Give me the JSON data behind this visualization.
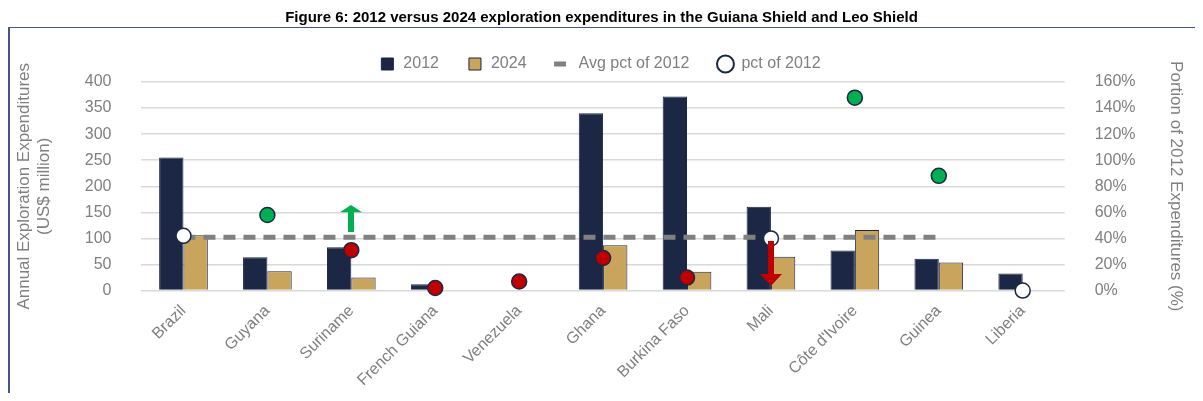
{
  "chart_data": {
    "type": "bar",
    "title": "Figure 6: 2012 versus 2024 exploration expenditures in the Guiana Shield and Leo Shield",
    "categories": [
      "Brazil",
      "Guyana",
      "Suriname",
      "French Guiana",
      "Venezuela",
      "Ghana",
      "Burkina Faso",
      "Mali",
      "Côte d'Ivoire",
      "Guinea",
      "Liberia"
    ],
    "series": [
      {
        "name": "2012",
        "color": "#1b2745",
        "values": [
          255,
          64,
          83,
          12,
          null,
          340,
          372,
          161,
          77,
          61,
          33
        ]
      },
      {
        "name": "2024",
        "color": "#c9a45c",
        "values": [
          106,
          37,
          25,
          null,
          null,
          87,
          36,
          65,
          116,
          54,
          null
        ]
      },
      {
        "name": "Avg pct of 2012",
        "type": "line",
        "axis": "y2",
        "color": "#808080",
        "line_style": "dashed",
        "marker": "none",
        "values": [
          41,
          41,
          41,
          41,
          41,
          41,
          41,
          41,
          41,
          41,
          null
        ]
      },
      {
        "name": "pct of 2012",
        "type": "scatter",
        "axis": "y2",
        "marker": "circle",
        "x": [
          "Brazil",
          "Guyana",
          "Suriname",
          "French Guiana",
          "Venezuela",
          "Ghana",
          "Burkina Faso",
          "Mali",
          "Côte d'Ivoire",
          "Guinea",
          "Liberia"
        ],
        "colors": [
          "#ffffff",
          "#00b050",
          "#c00000",
          "#c00000",
          "#c00000",
          "#c00000",
          "#c00000",
          "#ffffff",
          "#00b050",
          "#00b050",
          "#ffffff"
        ],
        "values": [
          42,
          58,
          31,
          2,
          7,
          25,
          10,
          40,
          148,
          88,
          0
        ]
      }
    ],
    "ylabel": "Annual Exploration Expenditures\n(US$ million)",
    "y2label": "Portion of 2012 Expenditures (%)",
    "ylim": [
      0,
      400
    ],
    "yticks": [
      0,
      50,
      100,
      150,
      200,
      250,
      300,
      350,
      400
    ],
    "y2lim": [
      0,
      160
    ],
    "y2ticks": [
      {
        "value": 0,
        "label": "0%"
      },
      {
        "value": 20,
        "label": "20%"
      },
      {
        "value": 40,
        "label": "40%"
      },
      {
        "value": 60,
        "label": "60%"
      },
      {
        "value": 80,
        "label": "80%"
      },
      {
        "value": 100,
        "label": "100%"
      },
      {
        "value": 120,
        "label": "120%"
      },
      {
        "value": 140,
        "label": "140%"
      },
      {
        "value": 160,
        "label": "160%"
      }
    ],
    "grid": "y",
    "legend": "top"
  }
}
